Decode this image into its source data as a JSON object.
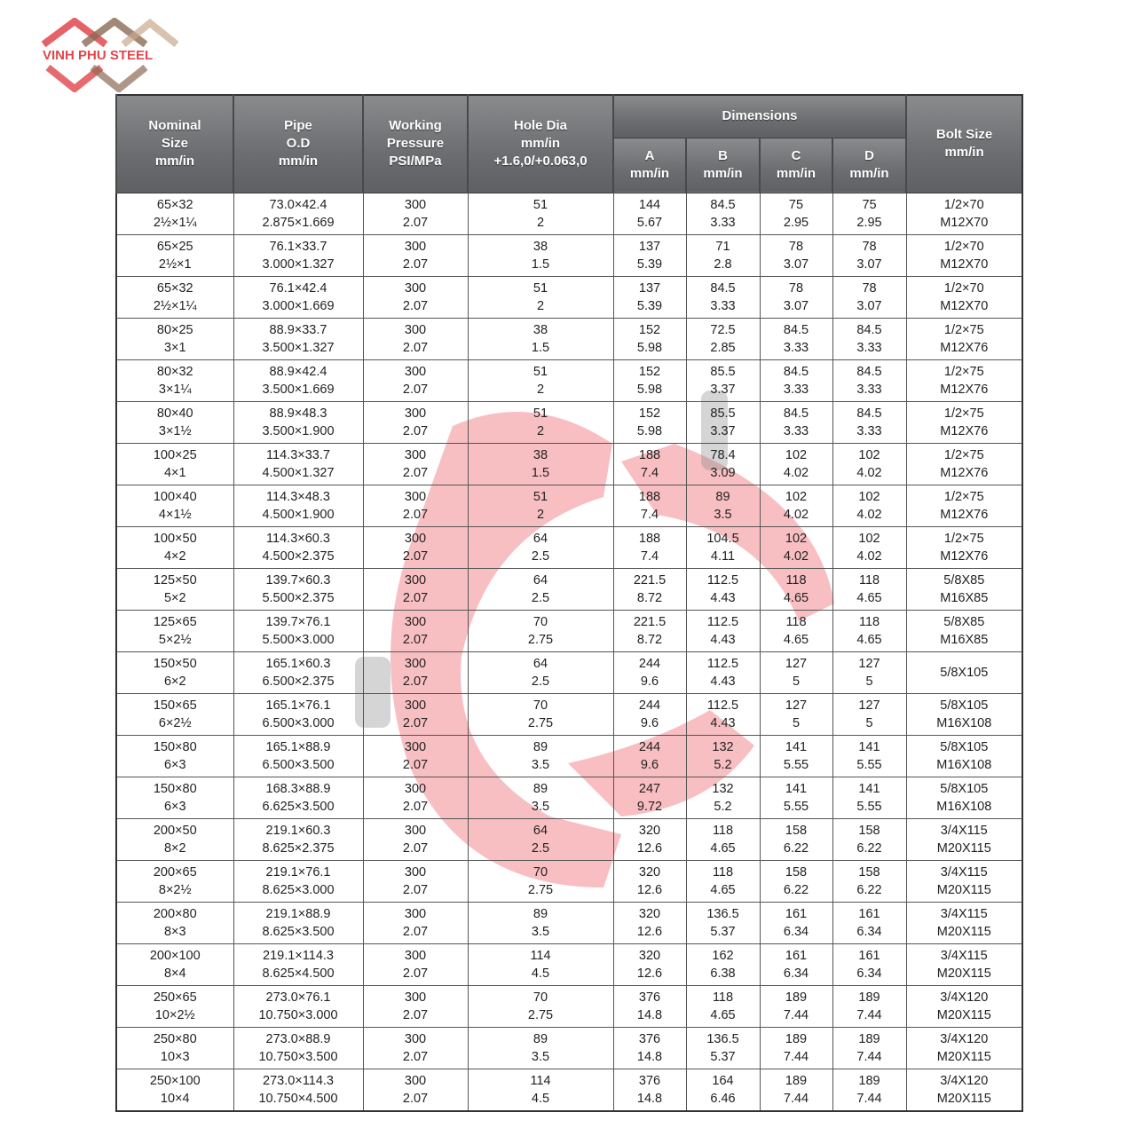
{
  "logo": {
    "text": "VINH PHU STEEL",
    "colors": [
      "#e0464c",
      "#8b6a55"
    ]
  },
  "headers": {
    "nominal": [
      "Nominal",
      "Size",
      "mm/in"
    ],
    "pipe": [
      "Pipe",
      "O.D",
      "mm/in"
    ],
    "pressure": [
      "Working",
      "Pressure",
      "PSI/MPa"
    ],
    "hole": [
      "Hole Dia",
      "mm/in",
      "+1.6,0/+0.063,0"
    ],
    "dimensions": "Dimensions",
    "a": [
      "A",
      "mm/in"
    ],
    "b": [
      "B",
      "mm/in"
    ],
    "c": [
      "C",
      "mm/in"
    ],
    "d": [
      "D",
      "mm/in"
    ],
    "bolt": [
      "Bolt Size",
      "mm/in"
    ]
  },
  "rows": [
    [
      [
        "65×32",
        "2½×1¼"
      ],
      [
        "73.0×42.4",
        "2.875×1.669"
      ],
      [
        "300",
        "2.07"
      ],
      [
        "51",
        "2"
      ],
      [
        "144",
        "5.67"
      ],
      [
        "84.5",
        "3.33"
      ],
      [
        "75",
        "2.95"
      ],
      [
        "75",
        "2.95"
      ],
      [
        "1/2×70",
        "M12X70"
      ]
    ],
    [
      [
        "65×25",
        "2½×1"
      ],
      [
        "76.1×33.7",
        "3.000×1.327"
      ],
      [
        "300",
        "2.07"
      ],
      [
        "38",
        "1.5"
      ],
      [
        "137",
        "5.39"
      ],
      [
        "71",
        "2.8"
      ],
      [
        "78",
        "3.07"
      ],
      [
        "78",
        "3.07"
      ],
      [
        "1/2×70",
        "M12X70"
      ]
    ],
    [
      [
        "65×32",
        "2½×1¼"
      ],
      [
        "76.1×42.4",
        "3.000×1.669"
      ],
      [
        "300",
        "2.07"
      ],
      [
        "51",
        "2"
      ],
      [
        "137",
        "5.39"
      ],
      [
        "84.5",
        "3.33"
      ],
      [
        "78",
        "3.07"
      ],
      [
        "78",
        "3.07"
      ],
      [
        "1/2×70",
        "M12X70"
      ]
    ],
    [
      [
        "80×25",
        "3×1"
      ],
      [
        "88.9×33.7",
        "3.500×1.327"
      ],
      [
        "300",
        "2.07"
      ],
      [
        "38",
        "1.5"
      ],
      [
        "152",
        "5.98"
      ],
      [
        "72.5",
        "2.85"
      ],
      [
        "84.5",
        "3.33"
      ],
      [
        "84.5",
        "3.33"
      ],
      [
        "1/2×75",
        "M12X76"
      ]
    ],
    [
      [
        "80×32",
        "3×1¼"
      ],
      [
        "88.9×42.4",
        "3.500×1.669"
      ],
      [
        "300",
        "2.07"
      ],
      [
        "51",
        "2"
      ],
      [
        "152",
        "5.98"
      ],
      [
        "85.5",
        "3.37"
      ],
      [
        "84.5",
        "3.33"
      ],
      [
        "84.5",
        "3.33"
      ],
      [
        "1/2×75",
        "M12X76"
      ]
    ],
    [
      [
        "80×40",
        "3×1½"
      ],
      [
        "88.9×48.3",
        "3.500×1.900"
      ],
      [
        "300",
        "2.07"
      ],
      [
        "51",
        "2"
      ],
      [
        "152",
        "5.98"
      ],
      [
        "85.5",
        "3.37"
      ],
      [
        "84.5",
        "3.33"
      ],
      [
        "84.5",
        "3.33"
      ],
      [
        "1/2×75",
        "M12X76"
      ]
    ],
    [
      [
        "100×25",
        "4×1"
      ],
      [
        "114.3×33.7",
        "4.500×1.327"
      ],
      [
        "300",
        "2.07"
      ],
      [
        "38",
        "1.5"
      ],
      [
        "188",
        "7.4"
      ],
      [
        "78.4",
        "3.09"
      ],
      [
        "102",
        "4.02"
      ],
      [
        "102",
        "4.02"
      ],
      [
        "1/2×75",
        "M12X76"
      ]
    ],
    [
      [
        "100×40",
        "4×1½"
      ],
      [
        "114.3×48.3",
        "4.500×1.900"
      ],
      [
        "300",
        "2.07"
      ],
      [
        "51",
        "2"
      ],
      [
        "188",
        "7.4"
      ],
      [
        "89",
        "3.5"
      ],
      [
        "102",
        "4.02"
      ],
      [
        "102",
        "4.02"
      ],
      [
        "1/2×75",
        "M12X76"
      ]
    ],
    [
      [
        "100×50",
        "4×2"
      ],
      [
        "114.3×60.3",
        "4.500×2.375"
      ],
      [
        "300",
        "2.07"
      ],
      [
        "64",
        "2.5"
      ],
      [
        "188",
        "7.4"
      ],
      [
        "104.5",
        "4.11"
      ],
      [
        "102",
        "4.02"
      ],
      [
        "102",
        "4.02"
      ],
      [
        "1/2×75",
        "M12X76"
      ]
    ],
    [
      [
        "125×50",
        "5×2"
      ],
      [
        "139.7×60.3",
        "5.500×2.375"
      ],
      [
        "300",
        "2.07"
      ],
      [
        "64",
        "2.5"
      ],
      [
        "221.5",
        "8.72"
      ],
      [
        "112.5",
        "4.43"
      ],
      [
        "118",
        "4.65"
      ],
      [
        "118",
        "4.65"
      ],
      [
        "5/8X85",
        "M16X85"
      ]
    ],
    [
      [
        "125×65",
        "5×2½"
      ],
      [
        "139.7×76.1",
        "5.500×3.000"
      ],
      [
        "300",
        "2.07"
      ],
      [
        "70",
        "2.75"
      ],
      [
        "221.5",
        "8.72"
      ],
      [
        "112.5",
        "4.43"
      ],
      [
        "118",
        "4.65"
      ],
      [
        "118",
        "4.65"
      ],
      [
        "5/8X85",
        "M16X85"
      ]
    ],
    [
      [
        "150×50",
        "6×2"
      ],
      [
        "165.1×60.3",
        "6.500×2.375"
      ],
      [
        "300",
        "2.07"
      ],
      [
        "64",
        "2.5"
      ],
      [
        "244",
        "9.6"
      ],
      [
        "112.5",
        "4.43"
      ],
      [
        "127",
        "5"
      ],
      [
        "127",
        "5"
      ],
      [
        "5/8X105"
      ]
    ],
    [
      [
        "150×65",
        "6×2½"
      ],
      [
        "165.1×76.1",
        "6.500×3.000"
      ],
      [
        "300",
        "2.07"
      ],
      [
        "70",
        "2.75"
      ],
      [
        "244",
        "9.6"
      ],
      [
        "112.5",
        "4.43"
      ],
      [
        "127",
        "5"
      ],
      [
        "127",
        "5"
      ],
      [
        "5/8X105",
        "M16X108"
      ]
    ],
    [
      [
        "150×80",
        "6×3"
      ],
      [
        "165.1×88.9",
        "6.500×3.500"
      ],
      [
        "300",
        "2.07"
      ],
      [
        "89",
        "3.5"
      ],
      [
        "244",
        "9.6"
      ],
      [
        "132",
        "5.2"
      ],
      [
        "141",
        "5.55"
      ],
      [
        "141",
        "5.55"
      ],
      [
        "5/8X105",
        "M16X108"
      ]
    ],
    [
      [
        "150×80",
        "6×3"
      ],
      [
        "168.3×88.9",
        "6.625×3.500"
      ],
      [
        "300",
        "2.07"
      ],
      [
        "89",
        "3.5"
      ],
      [
        "247",
        "9.72"
      ],
      [
        "132",
        "5.2"
      ],
      [
        "141",
        "5.55"
      ],
      [
        "141",
        "5.55"
      ],
      [
        "5/8X105",
        "M16X108"
      ]
    ],
    [
      [
        "200×50",
        "8×2"
      ],
      [
        "219.1×60.3",
        "8.625×2.375"
      ],
      [
        "300",
        "2.07"
      ],
      [
        "64",
        "2.5"
      ],
      [
        "320",
        "12.6"
      ],
      [
        "118",
        "4.65"
      ],
      [
        "158",
        "6.22"
      ],
      [
        "158",
        "6.22"
      ],
      [
        "3/4X115",
        "M20X115"
      ]
    ],
    [
      [
        "200×65",
        "8×2½"
      ],
      [
        "219.1×76.1",
        "8.625×3.000"
      ],
      [
        "300",
        "2.07"
      ],
      [
        "70",
        "2.75"
      ],
      [
        "320",
        "12.6"
      ],
      [
        "118",
        "4.65"
      ],
      [
        "158",
        "6.22"
      ],
      [
        "158",
        "6.22"
      ],
      [
        "3/4X115",
        "M20X115"
      ]
    ],
    [
      [
        "200×80",
        "8×3"
      ],
      [
        "219.1×88.9",
        "8.625×3.500"
      ],
      [
        "300",
        "2.07"
      ],
      [
        "89",
        "3.5"
      ],
      [
        "320",
        "12.6"
      ],
      [
        "136.5",
        "5.37"
      ],
      [
        "161",
        "6.34"
      ],
      [
        "161",
        "6.34"
      ],
      [
        "3/4X115",
        "M20X115"
      ]
    ],
    [
      [
        "200×100",
        "8×4"
      ],
      [
        "219.1×114.3",
        "8.625×4.500"
      ],
      [
        "300",
        "2.07"
      ],
      [
        "114",
        "4.5"
      ],
      [
        "320",
        "12.6"
      ],
      [
        "162",
        "6.38"
      ],
      [
        "161",
        "6.34"
      ],
      [
        "161",
        "6.34"
      ],
      [
        "3/4X115",
        "M20X115"
      ]
    ],
    [
      [
        "250×65",
        "10×2½"
      ],
      [
        "273.0×76.1",
        "10.750×3.000"
      ],
      [
        "300",
        "2.07"
      ],
      [
        "70",
        "2.75"
      ],
      [
        "376",
        "14.8"
      ],
      [
        "118",
        "4.65"
      ],
      [
        "189",
        "7.44"
      ],
      [
        "189",
        "7.44"
      ],
      [
        "3/4X120",
        "M20X115"
      ]
    ],
    [
      [
        "250×80",
        "10×3"
      ],
      [
        "273.0×88.9",
        "10.750×3.500"
      ],
      [
        "300",
        "2.07"
      ],
      [
        "89",
        "3.5"
      ],
      [
        "376",
        "14.8"
      ],
      [
        "136.5",
        "5.37"
      ],
      [
        "189",
        "7.44"
      ],
      [
        "189",
        "7.44"
      ],
      [
        "3/4X120",
        "M20X115"
      ]
    ],
    [
      [
        "250×100",
        "10×4"
      ],
      [
        "273.0×114.3",
        "10.750×4.500"
      ],
      [
        "300",
        "2.07"
      ],
      [
        "114",
        "4.5"
      ],
      [
        "376",
        "14.8"
      ],
      [
        "164",
        "6.46"
      ],
      [
        "189",
        "7.44"
      ],
      [
        "189",
        "7.44"
      ],
      [
        "3/4X120",
        "M20X115"
      ]
    ]
  ]
}
